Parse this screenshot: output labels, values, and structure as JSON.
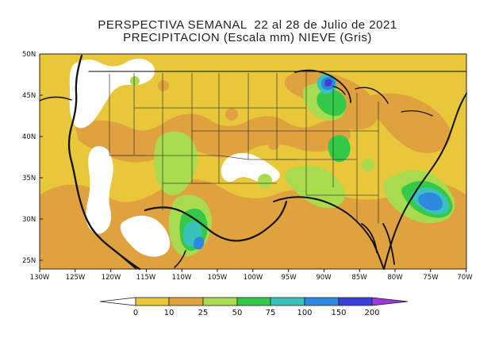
{
  "title": {
    "line1": "PERSPECTIVA SEMANAL  22 al 28 de Julio de 2021",
    "line2": "PRECIPITACION (Escala mm) NIEVE (Gris)"
  },
  "axes": {
    "lat_labels": [
      "50N",
      "45N",
      "40N",
      "35N",
      "30N",
      "25N"
    ],
    "lon_labels": [
      "130W",
      "125W",
      "120W",
      "115W",
      "110W",
      "105W",
      "100W",
      "95W",
      "90W",
      "85W",
      "80W",
      "75W",
      "70W"
    ]
  },
  "legend": {
    "ticks": [
      "0",
      "10",
      "25",
      "50",
      "75",
      "100",
      "150",
      "200"
    ],
    "colors": {
      "lt0": "#ffffff",
      "b0_10": "#e8c83a",
      "b10_25": "#e0a23f",
      "b25_50": "#a8db4e",
      "b50_75": "#35c94a",
      "b75_100": "#39c2b9",
      "b100_150": "#2f88e0",
      "b150_200": "#3a3fd6",
      "gt200": "#9b3ad9"
    }
  },
  "map_colors": {
    "land_base": "#e8c83a",
    "orange": "#e0a23f",
    "lightgreen": "#a8db4e",
    "green": "#35c94a",
    "teal": "#39c2b9",
    "blue": "#2f88e0",
    "dark_blue": "#3a3fd6",
    "snow_white": "#ffffff",
    "border_black": "#111111"
  }
}
